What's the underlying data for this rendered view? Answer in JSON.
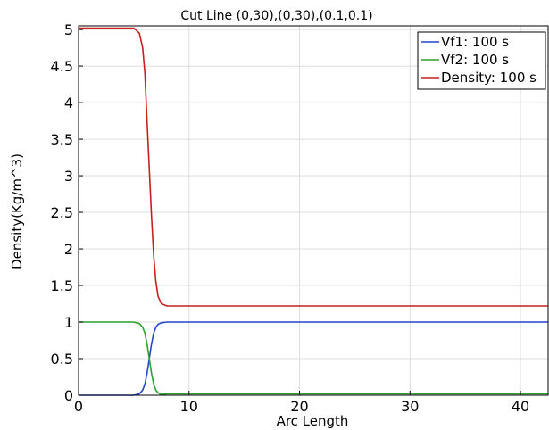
{
  "chart_data": {
    "type": "line",
    "title": "Cut Line (0,30),(0,30),(0.1,0.1)",
    "xlabel": "Arc Length",
    "ylabel": "Density(Kg/m^3)",
    "xlim": [
      0,
      42.5
    ],
    "ylim": [
      0,
      5.05
    ],
    "xticks": [
      0,
      10,
      20,
      30,
      40
    ],
    "yticks": [
      0,
      0.5,
      1,
      1.5,
      2,
      2.5,
      3,
      3.5,
      4,
      4.5,
      5
    ],
    "xtick_labels": [
      "0",
      "10",
      "20",
      "30",
      "40"
    ],
    "ytick_labels": [
      "0",
      "0.5",
      "1",
      "1.5",
      "2",
      "2.5",
      "3",
      "3.5",
      "4",
      "4.5",
      "5"
    ],
    "grid": true,
    "legend_position": "top-right",
    "series": [
      {
        "name": "Vf1: 100 s",
        "color": "#2346c8",
        "x": [
          0,
          5.0,
          5.5,
          5.8,
          6.0,
          6.2,
          6.4,
          6.6,
          6.8,
          7.0,
          7.2,
          7.5,
          8.0,
          42.5
        ],
        "y": [
          0,
          0,
          0.02,
          0.07,
          0.15,
          0.3,
          0.5,
          0.7,
          0.85,
          0.93,
          0.97,
          0.99,
          1.0,
          1.0
        ]
      },
      {
        "name": "Vf2: 100 s",
        "color": "#2ca02c",
        "x": [
          0,
          5.0,
          5.5,
          5.8,
          6.0,
          6.2,
          6.4,
          6.6,
          6.8,
          7.0,
          7.2,
          7.5,
          8.0,
          42.5
        ],
        "y": [
          1,
          1,
          0.98,
          0.93,
          0.85,
          0.7,
          0.5,
          0.3,
          0.15,
          0.07,
          0.03,
          0.01,
          0.02,
          0.02
        ]
      },
      {
        "name": "Density: 100 s",
        "color": "#c81e1e",
        "x": [
          0,
          5.0,
          5.5,
          5.8,
          6.0,
          6.2,
          6.4,
          6.6,
          6.8,
          7.0,
          7.2,
          7.5,
          8.0,
          42.5
        ],
        "y": [
          5.02,
          5.02,
          4.95,
          4.75,
          4.4,
          3.75,
          3.1,
          2.45,
          1.9,
          1.55,
          1.35,
          1.25,
          1.22,
          1.22
        ]
      }
    ]
  }
}
